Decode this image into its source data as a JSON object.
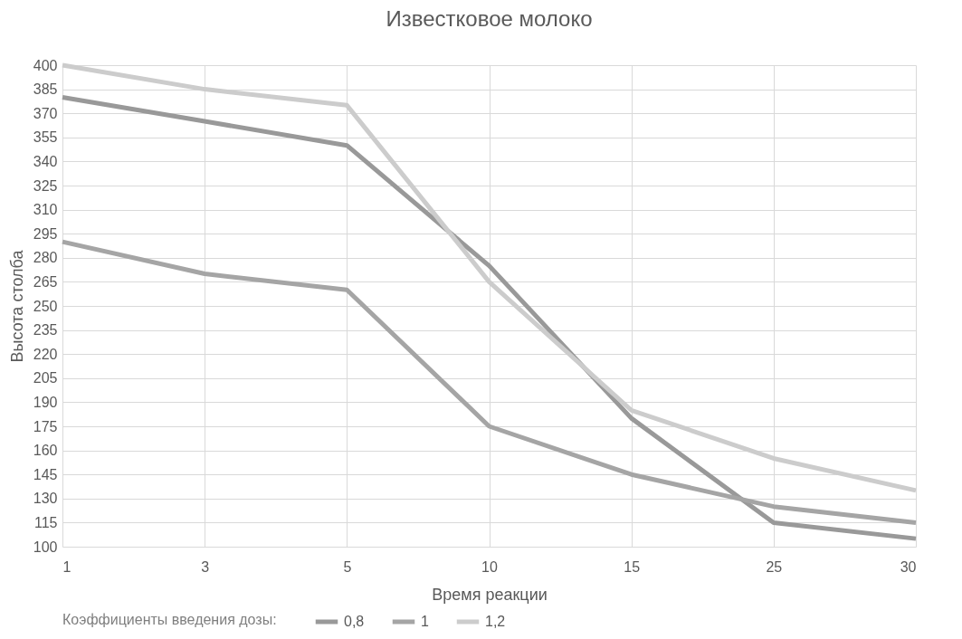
{
  "chart_data": {
    "type": "line",
    "title": "Известковое молоко",
    "xlabel": "Время реакции",
    "ylabel": "Высота столба",
    "legend_title": "Коэффициенты введения дозы:",
    "categories": [
      "1",
      "3",
      "5",
      "10",
      "15",
      "25",
      "30"
    ],
    "series": [
      {
        "name": "0,8",
        "color": "#999999",
        "values": [
          380,
          365,
          350,
          275,
          180,
          115,
          105
        ]
      },
      {
        "name": "1",
        "color": "#a5a5a5",
        "values": [
          290,
          270,
          260,
          175,
          145,
          125,
          115
        ]
      },
      {
        "name": "1,2",
        "color": "#cccccc",
        "values": [
          400,
          385,
          375,
          265,
          185,
          155,
          135
        ]
      }
    ],
    "ylim": [
      100,
      400
    ],
    "yticks": [
      100,
      115,
      130,
      145,
      160,
      175,
      190,
      205,
      220,
      235,
      250,
      265,
      280,
      295,
      310,
      325,
      340,
      355,
      370,
      385,
      400
    ],
    "grid": true,
    "legend": "bottom",
    "line_style": "solid"
  }
}
